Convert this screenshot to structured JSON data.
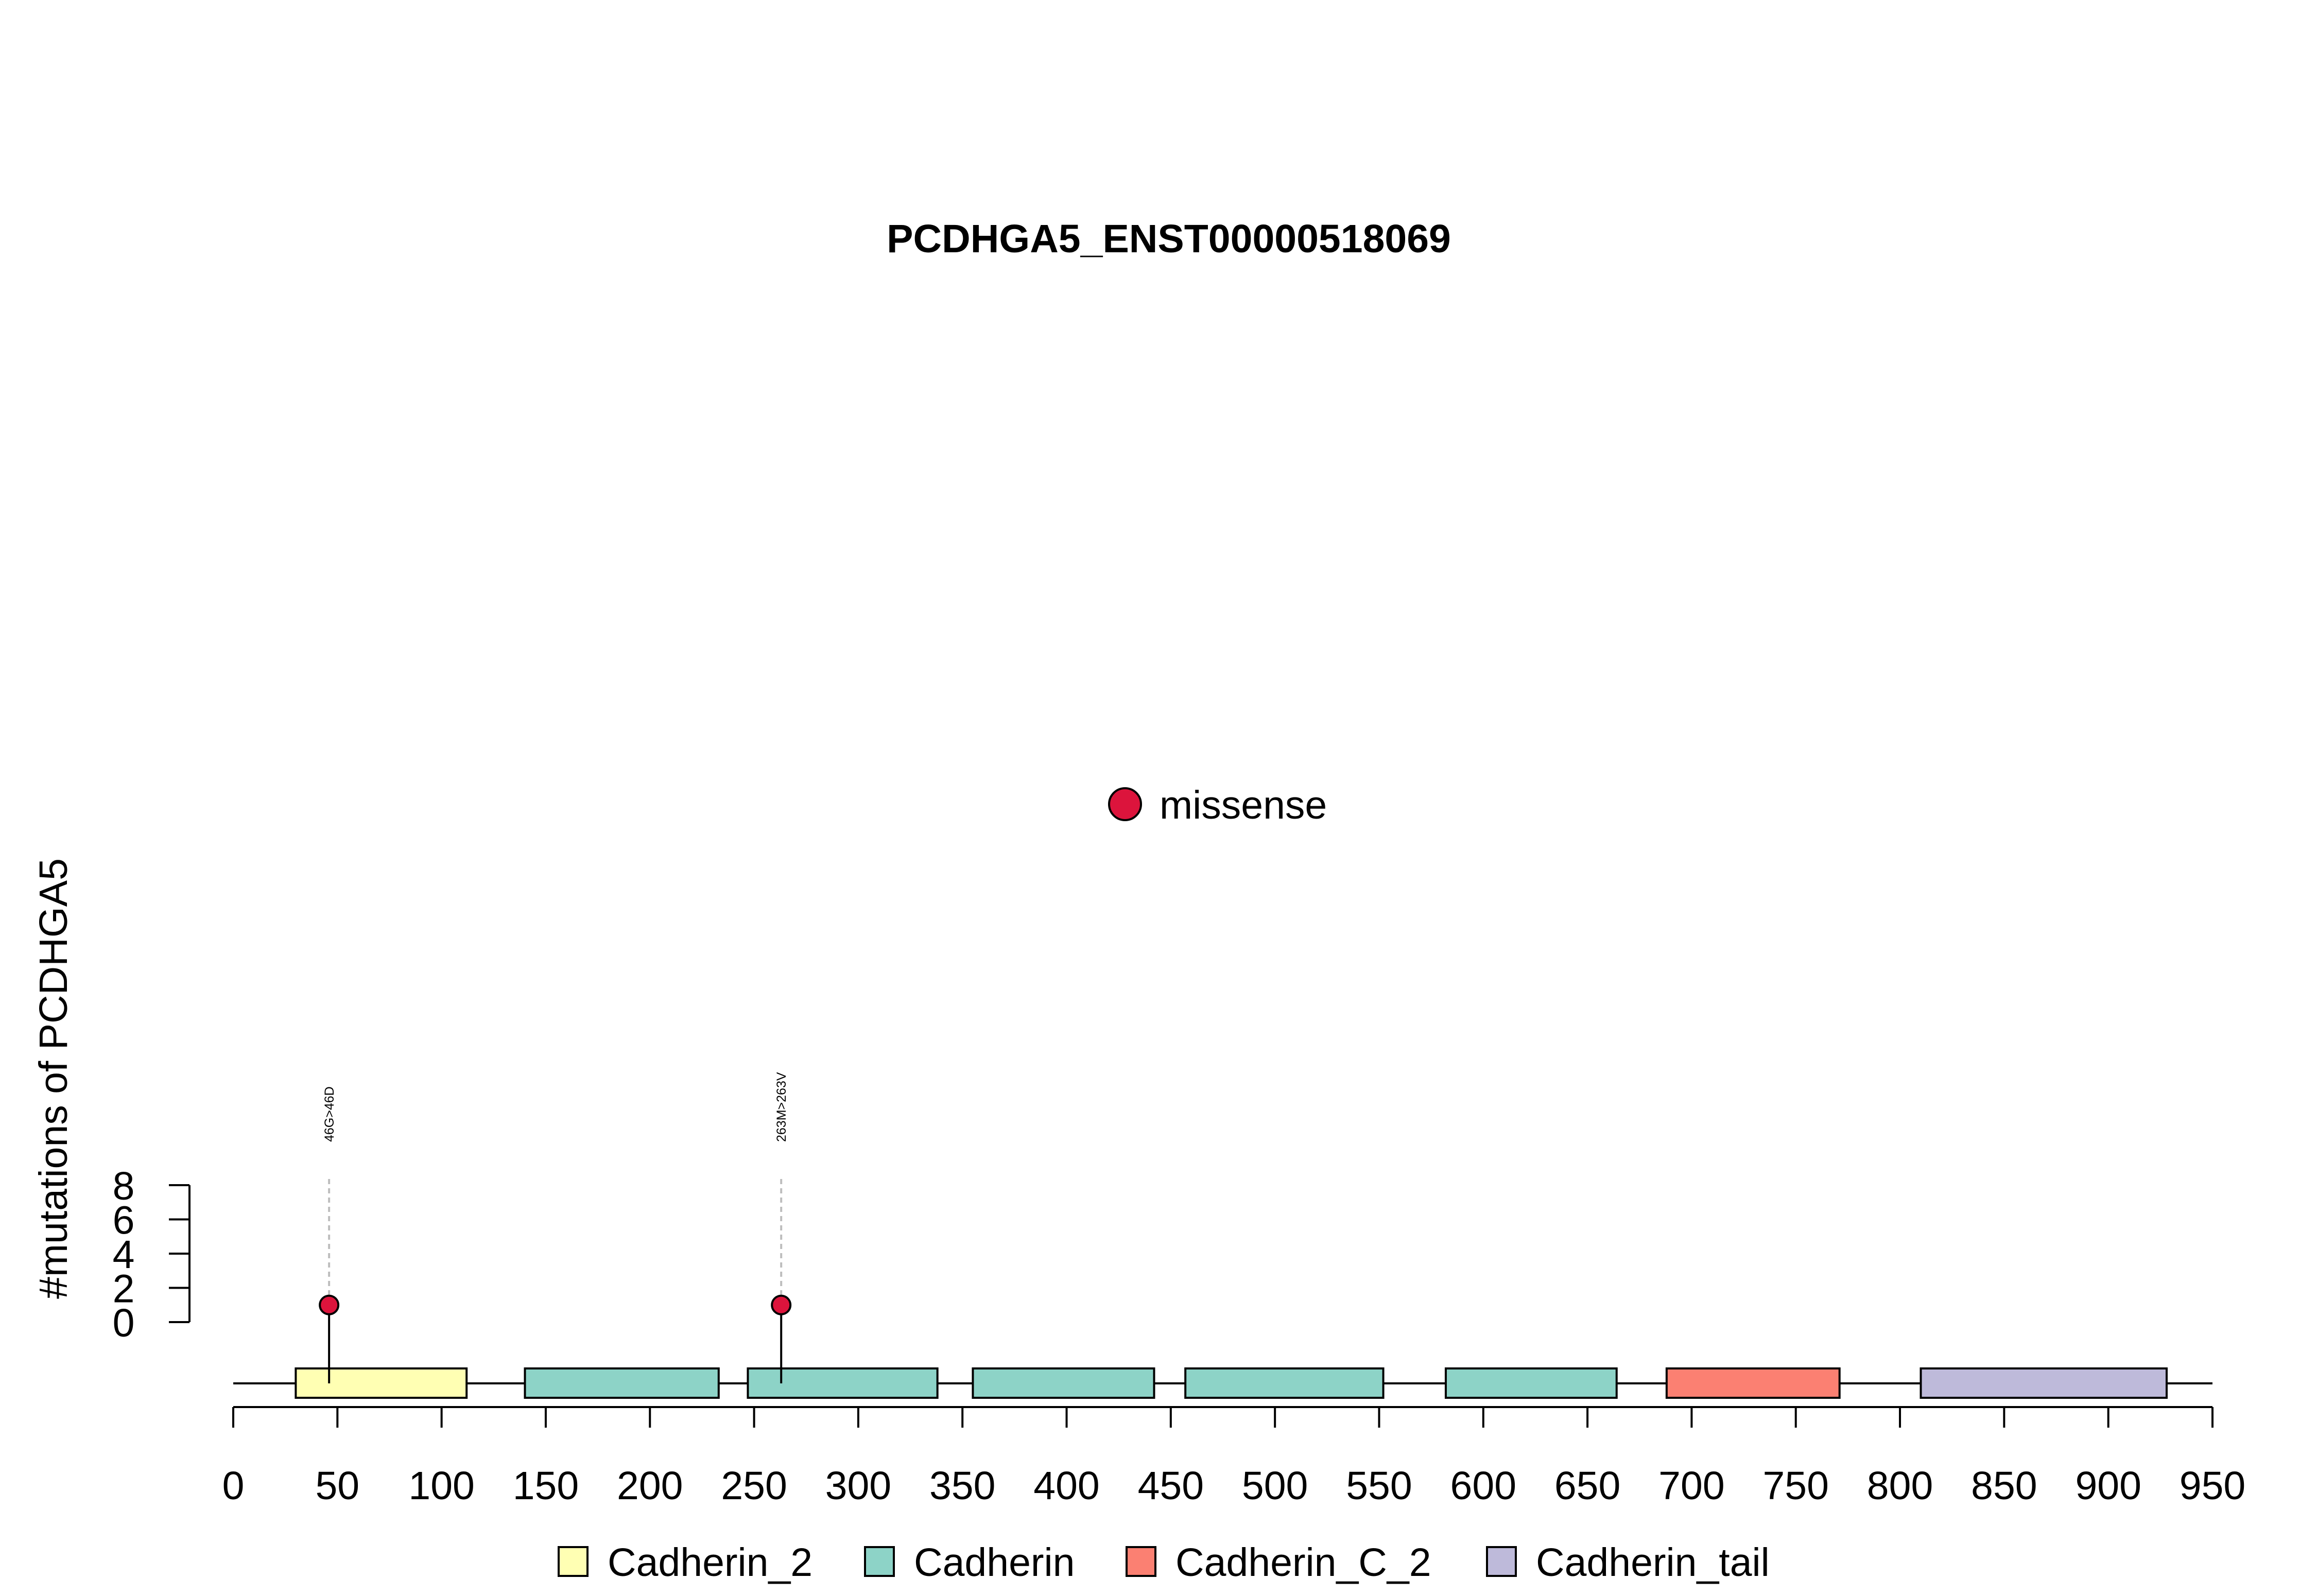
{
  "chart_data": {
    "type": "lollipop",
    "title": "PCDHGA5_ENST00000518069",
    "ylabel": "#mutations of PCDHGA5",
    "xlim": [
      0,
      950
    ],
    "x_ticks": [
      "0",
      "50",
      "100",
      "150",
      "200",
      "250",
      "300",
      "350",
      "400",
      "450",
      "500",
      "550",
      "600",
      "650",
      "700",
      "750",
      "800",
      "850",
      "900",
      "950"
    ],
    "ylim": [
      0,
      8
    ],
    "y_ticks": [
      "0",
      "2",
      "4",
      "6",
      "8"
    ],
    "protein_length": 950,
    "mutation_legend": [
      {
        "label": "missense",
        "color": "#DC143C"
      }
    ],
    "mutations": [
      {
        "position": 46,
        "count": 1,
        "label": "46G>46D",
        "type": "missense",
        "color": "#DC143C"
      },
      {
        "position": 263,
        "count": 1,
        "label": "263M>263V",
        "type": "missense",
        "color": "#DC143C"
      }
    ],
    "domains": [
      {
        "name": "Cadherin_2",
        "start": 30,
        "end": 112,
        "color": "#FFFFB3"
      },
      {
        "name": "Cadherin",
        "start": 140,
        "end": 233,
        "color": "#8DD3C7"
      },
      {
        "name": "Cadherin",
        "start": 247,
        "end": 338,
        "color": "#8DD3C7"
      },
      {
        "name": "Cadherin",
        "start": 355,
        "end": 442,
        "color": "#8DD3C7"
      },
      {
        "name": "Cadherin",
        "start": 457,
        "end": 552,
        "color": "#8DD3C7"
      },
      {
        "name": "Cadherin",
        "start": 582,
        "end": 664,
        "color": "#8DD3C7"
      },
      {
        "name": "Cadherin_C_2",
        "start": 688,
        "end": 771,
        "color": "#FB8072"
      },
      {
        "name": "Cadherin_tail",
        "start": 810,
        "end": 928,
        "color": "#BEBADA"
      }
    ],
    "domain_legend": [
      {
        "label": "Cadherin_2",
        "color": "#FFFFB3"
      },
      {
        "label": "Cadherin",
        "color": "#8DD3C7"
      },
      {
        "label": "Cadherin_C_2",
        "color": "#FB8072"
      },
      {
        "label": "Cadherin_tail",
        "color": "#BEBADA"
      }
    ]
  }
}
